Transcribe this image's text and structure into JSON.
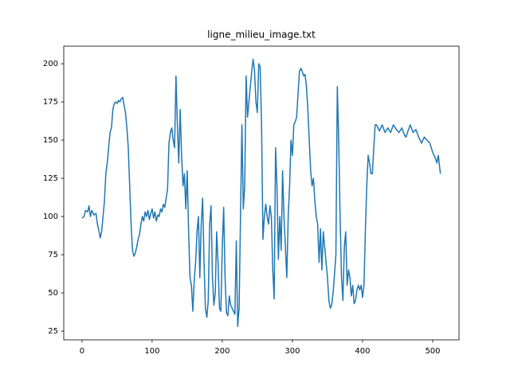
{
  "chart_data": {
    "type": "line",
    "title": "ligne_milieu_image.txt",
    "xlim": [
      -26,
      537.5
    ],
    "ylim": [
      19.3,
      211.5
    ],
    "xticks": [
      0,
      100,
      200,
      300,
      400,
      500
    ],
    "yticks": [
      25,
      50,
      75,
      100,
      125,
      150,
      175,
      200
    ],
    "x": [
      0,
      3,
      5,
      8,
      10,
      12,
      14,
      17,
      20,
      22,
      24,
      26,
      28,
      30,
      32,
      34,
      36,
      38,
      40,
      42,
      44,
      46,
      48,
      50,
      52,
      54,
      56,
      58,
      60,
      62,
      64,
      66,
      68,
      70,
      72,
      74,
      76,
      78,
      80,
      82,
      84,
      86,
      88,
      90,
      92,
      94,
      96,
      98,
      100,
      102,
      104,
      106,
      108,
      110,
      112,
      114,
      116,
      118,
      120,
      122,
      124,
      126,
      128,
      130,
      132,
      134,
      136,
      138,
      140,
      142,
      144,
      146,
      148,
      150,
      152,
      154,
      156,
      158,
      160,
      162,
      164,
      166,
      168,
      170,
      172,
      174,
      176,
      178,
      180,
      182,
      184,
      186,
      188,
      190,
      192,
      194,
      196,
      198,
      200,
      202,
      204,
      206,
      208,
      210,
      212,
      214,
      216,
      218,
      220,
      222,
      224,
      226,
      228,
      230,
      232,
      234,
      236,
      238,
      240,
      242,
      244,
      246,
      248,
      250,
      252,
      254,
      256,
      258,
      260,
      262,
      264,
      266,
      268,
      270,
      272,
      274,
      276,
      278,
      280,
      282,
      284,
      286,
      288,
      290,
      292,
      294,
      296,
      298,
      300,
      302,
      304,
      306,
      308,
      310,
      312,
      314,
      316,
      318,
      320,
      322,
      324,
      326,
      328,
      330,
      332,
      334,
      336,
      338,
      340,
      342,
      344,
      346,
      348,
      350,
      352,
      354,
      356,
      358,
      360,
      362,
      364,
      366,
      368,
      370,
      372,
      374,
      376,
      378,
      380,
      382,
      384,
      386,
      388,
      390,
      392,
      394,
      396,
      398,
      400,
      402,
      404,
      406,
      408,
      410,
      412,
      414,
      416,
      418,
      420,
      424,
      428,
      432,
      436,
      440,
      444,
      448,
      452,
      456,
      460,
      462,
      464,
      468,
      472,
      476,
      480,
      484,
      488,
      492,
      496,
      500,
      504,
      506,
      508,
      510,
      511
    ],
    "series": [
      {
        "color": "#1f77b4",
        "values": [
          99,
          100,
          104,
          103,
          107,
          100,
          104,
          101,
          102,
          95,
          91,
          86,
          90,
          100,
          110,
          128,
          135,
          145,
          155,
          158,
          170,
          174,
          175,
          174,
          176,
          175,
          177,
          178,
          173,
          168,
          158,
          145,
          120,
          95,
          78,
          74,
          76,
          80,
          85,
          88,
          95,
          100,
          97,
          103,
          100,
          104,
          98,
          102,
          105,
          99,
          103,
          97,
          101,
          100,
          105,
          103,
          108,
          106,
          112,
          118,
          148,
          155,
          158,
          150,
          145,
          192,
          160,
          135,
          170,
          140,
          120,
          128,
          105,
          130,
          90,
          60,
          55,
          38,
          58,
          70,
          90,
          100,
          60,
          95,
          112,
          70,
          40,
          34,
          45,
          95,
          107,
          60,
          42,
          50,
          90,
          70,
          40,
          38,
          80,
          106,
          60,
          37,
          35,
          48,
          42,
          40,
          38,
          36,
          84,
          28,
          40,
          100,
          160,
          105,
          120,
          192,
          165,
          175,
          185,
          195,
          203,
          195,
          175,
          168,
          200,
          198,
          160,
          85,
          100,
          108,
          100,
          95,
          107,
          100,
          65,
          46,
          145,
          120,
          72,
          100,
          78,
          130,
          100,
          80,
          60,
          100,
          120,
          150,
          140,
          160,
          162,
          165,
          180,
          195,
          197,
          195,
          192,
          193,
          185,
          170,
          150,
          130,
          120,
          125,
          110,
          100,
          95,
          70,
          92,
          65,
          90,
          80,
          70,
          60,
          45,
          40,
          42,
          50,
          62,
          75,
          185,
          150,
          100,
          60,
          45,
          80,
          90,
          55,
          65,
          60,
          48,
          55,
          43,
          45,
          52,
          55,
          52,
          55,
          47,
          55,
          90,
          120,
          140,
          135,
          128,
          128,
          145,
          160,
          160,
          156,
          160,
          155,
          158,
          155,
          160,
          157,
          155,
          158,
          153,
          152,
          155,
          160,
          155,
          157,
          152,
          148,
          152,
          150,
          148,
          142,
          138,
          135,
          140,
          132,
          128
        ]
      }
    ]
  }
}
